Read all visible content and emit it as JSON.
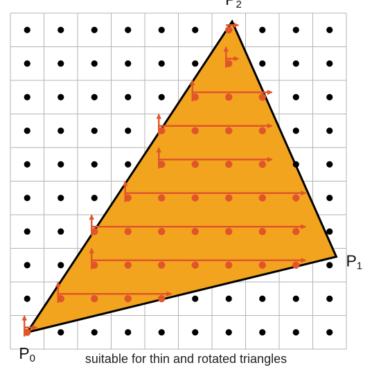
{
  "grid": {
    "cols": 10,
    "rows": 10
  },
  "colors": {
    "grid_line": "#b3b3b3",
    "pixel_dot": "#000000",
    "triangle_fill": "#f2a41f",
    "triangle_stroke": "#000000",
    "sample": "#e0552a"
  },
  "vertices": [
    {
      "label": "P",
      "sub": "0",
      "grid_x": 0.5,
      "grid_y": 9.5
    },
    {
      "label": "P",
      "sub": "1",
      "grid_x": 9.7,
      "grid_y": 7.25
    },
    {
      "label": "P",
      "sub": "2",
      "grid_x": 6.6,
      "grid_y": 0.25
    }
  ],
  "caption": "suitable for thin and rotated triangles"
}
